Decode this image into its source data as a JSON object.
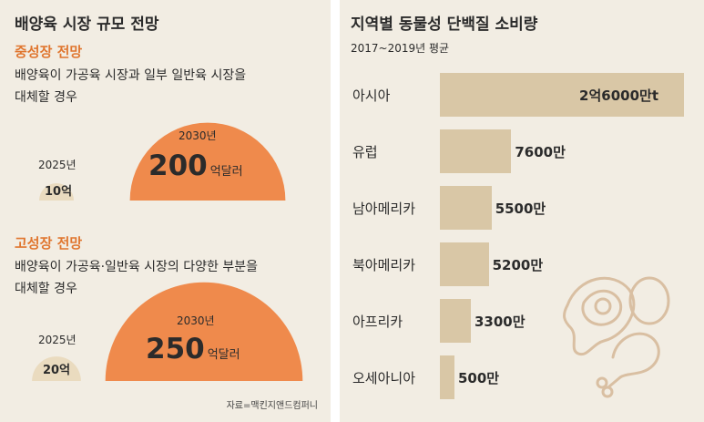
{
  "left": {
    "title": "배양육 시장 규모 전망",
    "scenario1": {
      "heading": "중성장 전망",
      "desc_line1": "배양육이 가공육 시장과 일부 일반육 시장을",
      "desc_line2": "대체할 경우",
      "year_2025": "2025년",
      "value_2025": "10억",
      "year_2030": "2030년",
      "value_2030": "200",
      "unit_2030": "억달러"
    },
    "scenario2": {
      "heading": "고성장 전망",
      "desc_line1": "배양육이 가공육·일반육 시장의 다양한 부분을",
      "desc_line2": "대체할 경우",
      "year_2025": "2025년",
      "value_2025": "20억",
      "year_2030": "2030년",
      "value_2030": "250",
      "unit_2030": "억달러"
    },
    "source": "자료=맥킨지앤드컴퍼니"
  },
  "chart_data": [
    {
      "type": "bar",
      "title": "배양육 시장 규모 전망",
      "subtitle": "중성장 전망",
      "categories": [
        "2025년",
        "2030년"
      ],
      "values": [
        10,
        200
      ],
      "labels": [
        "10억",
        "200억달러"
      ]
    },
    {
      "type": "bar",
      "title": "배양육 시장 규모 전망",
      "subtitle": "고성장 전망",
      "categories": [
        "2025년",
        "2030년"
      ],
      "values": [
        20,
        250
      ],
      "labels": [
        "20억",
        "250억달러"
      ]
    },
    {
      "type": "bar",
      "orientation": "horizontal",
      "title": "지역별 동물성 단백질 소비량",
      "subtitle": "2017~2019년 평균",
      "categories": [
        "아시아",
        "유럽",
        "남아메리카",
        "북아메리카",
        "아프리카",
        "오세아니아"
      ],
      "values": [
        260000000,
        76000000,
        55000000,
        52000000,
        33000000,
        5000000
      ],
      "labels": [
        "2억6000만t",
        "7600만",
        "5500만",
        "5200만",
        "3300만",
        "500만"
      ]
    }
  ],
  "colors": {
    "panel_bg": "#f2ede3",
    "accent_orange": "#ef8a4c",
    "small_circle": "#eadbbf",
    "bar": "#d9c7a6",
    "heading_orange": "#e0762f",
    "text": "#2b2b2b",
    "icon_line": "#d9bfa2"
  },
  "icons": {
    "food": "meat-egg-drumstick-icon"
  }
}
